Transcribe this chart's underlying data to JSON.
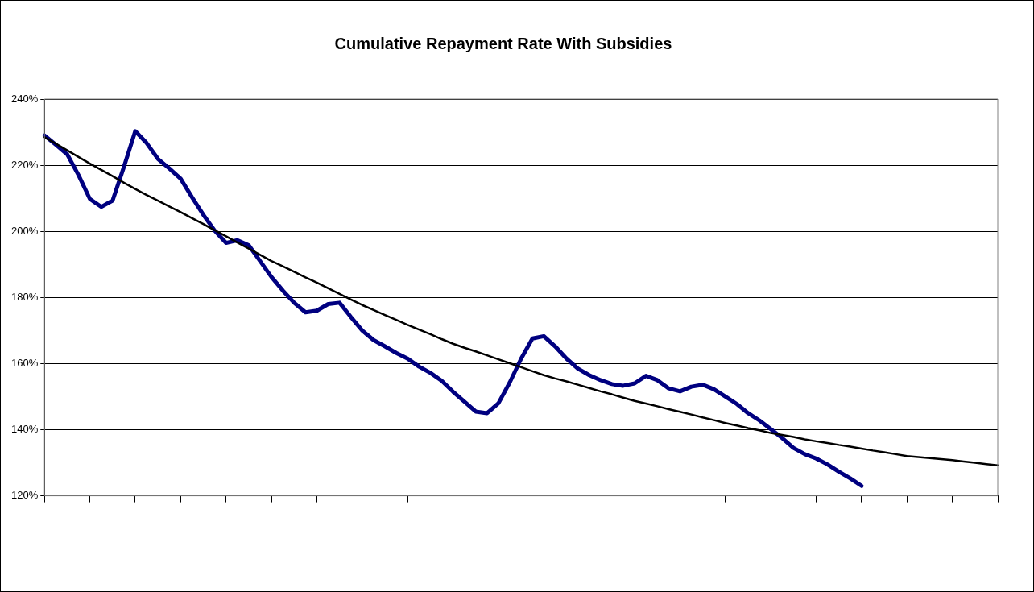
{
  "chart_data": {
    "type": "line",
    "title": "Cumulative Repayment Rate With Subsidies",
    "categories": [
      null,
      null,
      null,
      null,
      null,
      null,
      null,
      null,
      null,
      null,
      null,
      null,
      null,
      null,
      null,
      null,
      null,
      null,
      null,
      null,
      null,
      null,
      null,
      null,
      null,
      null,
      null,
      null,
      null,
      null,
      null,
      null,
      null,
      null,
      null,
      null,
      null,
      null,
      null,
      null,
      null,
      null,
      null,
      null,
      null,
      null,
      null,
      null,
      null,
      null,
      null,
      null,
      null,
      null,
      null,
      null,
      null,
      null,
      null,
      null,
      null,
      null,
      null,
      null,
      null,
      null,
      null,
      null,
      null,
      null,
      null,
      null,
      null,
      null,
      null,
      null,
      null,
      null,
      null,
      null,
      null,
      null,
      null,
      null,
      null
    ],
    "ylim": [
      120,
      240
    ],
    "yticks": [
      {
        "value": 120,
        "label": "120%"
      },
      {
        "value": 140,
        "label": "140%"
      },
      {
        "value": 160,
        "label": "160%"
      },
      {
        "value": 180,
        "label": "180%"
      },
      {
        "value": 200,
        "label": "200%"
      },
      {
        "value": 220,
        "label": "220%"
      },
      {
        "value": 240,
        "label": "240%"
      }
    ],
    "grid": "y",
    "legend": false,
    "marker": "none",
    "line_style": "solid",
    "series": [
      {
        "color": "#000080",
        "values": [
          229,
          226.2,
          223.3,
          217,
          209.8,
          207.4,
          209.3,
          219.5,
          230.3,
          226.7,
          221.9,
          219,
          215.9,
          210.3,
          205,
          200.2,
          196.5,
          197.3,
          195.8,
          191,
          186.2,
          182.1,
          178.4,
          175.5,
          176,
          178,
          178.4,
          174.1,
          170,
          167.1,
          165.2,
          163.2,
          161.5,
          159.1,
          157.2,
          154.8,
          151.5,
          148.5,
          145.5,
          145,
          148,
          154.3,
          161.5,
          167.6,
          168.3,
          165.2,
          161.5,
          158.5,
          156.5,
          155,
          153.8,
          153.3,
          154,
          156.3,
          155,
          152.5,
          151.6,
          153,
          153.6,
          152.2,
          150,
          147.8,
          145,
          142.8,
          140.2,
          137.5,
          134.5,
          132.6,
          131.3,
          129.5,
          127.3,
          125.3,
          123,
          null,
          null,
          null,
          null,
          null,
          null,
          null,
          null,
          null,
          null,
          null,
          null
        ]
      },
      {
        "color": "#000000",
        "values": [
          228.5,
          226.5,
          224.5,
          222.5,
          220.5,
          218.6,
          216.7,
          214.7,
          212.8,
          211,
          209.3,
          207.5,
          205.8,
          204,
          202.2,
          200.3,
          198.5,
          196.6,
          194.8,
          192.9,
          191,
          189.4,
          187.8,
          186.1,
          184.5,
          182.8,
          181.1,
          179.4,
          177.7,
          176.2,
          174.7,
          173.2,
          171.7,
          170.3,
          168.9,
          167.4,
          166,
          164.8,
          163.7,
          162.5,
          161.3,
          160.1,
          158.9,
          157.7,
          156.5,
          155.5,
          154.6,
          153.6,
          152.6,
          151.6,
          150.7,
          149.7,
          148.7,
          147.9,
          147.1,
          146.2,
          145.4,
          144.6,
          143.7,
          142.9,
          142,
          141.3,
          140.5,
          139.8,
          139,
          138.4,
          137.8,
          137.1,
          136.5,
          136,
          135.4,
          134.9,
          134.3,
          133.7,
          133.2,
          132.6,
          132,
          131.7,
          131.4,
          131.1,
          130.8,
          130.4,
          130,
          129.6,
          129.2
        ]
      }
    ]
  }
}
